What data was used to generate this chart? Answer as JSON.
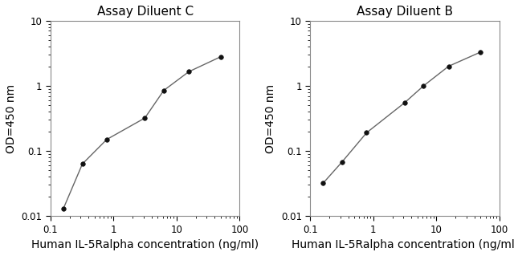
{
  "left_title": "Assay Diluent C",
  "right_title": "Assay Diluent B",
  "xlabel": "Human IL-5Ralpha concentration (ng/ml)",
  "ylabel": "OD=450 nm",
  "left_x": [
    0.16,
    0.32,
    0.78,
    3.13,
    6.25,
    15.6,
    50
  ],
  "left_y": [
    0.013,
    0.063,
    0.15,
    0.32,
    0.85,
    1.65,
    2.8
  ],
  "right_x": [
    0.16,
    0.32,
    0.78,
    3.13,
    6.25,
    15.6,
    50
  ],
  "right_y": [
    0.032,
    0.068,
    0.19,
    0.55,
    1.0,
    2.0,
    3.3
  ],
  "xlim": [
    0.1,
    100
  ],
  "ylim": [
    0.01,
    10
  ],
  "xticks": [
    0.1,
    1,
    10,
    100
  ],
  "xtick_labels": [
    "0.1",
    "1",
    "10",
    "100"
  ],
  "yticks": [
    0.01,
    0.1,
    1,
    10
  ],
  "ytick_labels": [
    "0.01",
    "0.1",
    "1",
    "10"
  ],
  "line_color": "#666666",
  "marker_color": "#111111",
  "title_fontsize": 11,
  "label_fontsize": 10,
  "tick_fontsize": 8.5,
  "background_color": "#ffffff"
}
